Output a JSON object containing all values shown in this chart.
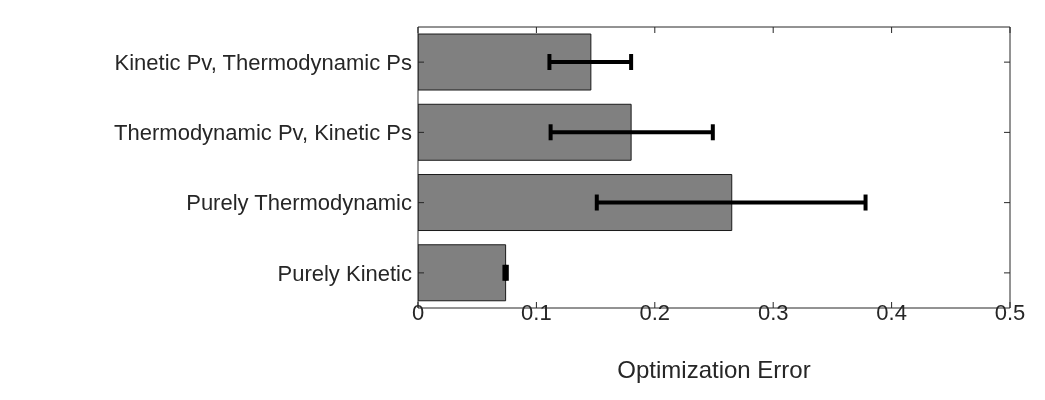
{
  "chart_data": {
    "type": "bar",
    "orientation": "horizontal",
    "xlabel": "Optimization Error",
    "categories": [
      "Kinetic Pv, Thermodynamic Ps",
      "Thermodynamic Pv, Kinetic Ps",
      "Purely Thermodynamic",
      "Purely Kinetic"
    ],
    "values": [
      0.146,
      0.18,
      0.265,
      0.074
    ],
    "errors": [
      [
        0.111,
        0.18
      ],
      [
        0.112,
        0.249
      ],
      [
        0.151,
        0.378
      ],
      [
        0.073,
        0.075
      ]
    ],
    "color": "#808080",
    "xlim": [
      0,
      0.5
    ],
    "xticks": [
      0,
      0.1,
      0.2,
      0.3,
      0.4,
      0.5
    ],
    "grid": false,
    "legend": false
  }
}
